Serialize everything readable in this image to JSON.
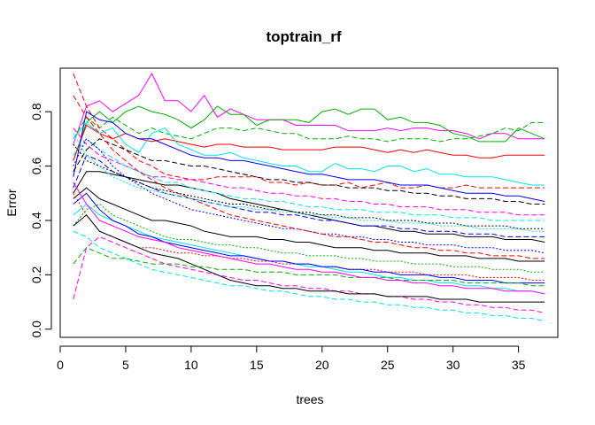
{
  "chart_data": {
    "type": "line",
    "title": "toptrain_rf",
    "xlabel": "trees",
    "ylabel": "Error",
    "xlim": [
      0,
      38
    ],
    "ylim": [
      -0.03,
      0.96
    ],
    "xticks": [
      0,
      5,
      10,
      15,
      20,
      25,
      30,
      35
    ],
    "yticks": [
      0.0,
      0.2,
      0.4,
      0.6,
      0.8
    ],
    "xtick_labels": [
      "0",
      "5",
      "10",
      "15",
      "20",
      "25",
      "30",
      "35"
    ],
    "ytick_labels": [
      "0.0",
      "0.2",
      "0.4",
      "0.6",
      "0.8"
    ],
    "grid": false,
    "legend": "none",
    "x": [
      1,
      2,
      3,
      4,
      5,
      6,
      7,
      8,
      9,
      10,
      11,
      12,
      13,
      14,
      15,
      16,
      17,
      18,
      19,
      20,
      21,
      22,
      23,
      24,
      25,
      26,
      27,
      28,
      29,
      30,
      31,
      32,
      33,
      34,
      35,
      36,
      37
    ],
    "series": [
      {
        "color": "#000000",
        "dash": "solid",
        "values": [
          0.5,
          0.58,
          0.58,
          0.57,
          0.56,
          0.55,
          0.54,
          0.53,
          0.53,
          0.52,
          0.51,
          0.5,
          0.48,
          0.47,
          0.46,
          0.45,
          0.44,
          0.43,
          0.42,
          0.41,
          0.4,
          0.39,
          0.38,
          0.38,
          0.37,
          0.36,
          0.36,
          0.35,
          0.35,
          0.35,
          0.34,
          0.34,
          0.34,
          0.33,
          0.33,
          0.33,
          0.32
        ]
      },
      {
        "color": "#ff00ff",
        "dash": "solid",
        "values": [
          0.68,
          0.82,
          0.84,
          0.8,
          0.83,
          0.86,
          0.94,
          0.84,
          0.84,
          0.8,
          0.86,
          0.78,
          0.81,
          0.79,
          0.77,
          0.77,
          0.77,
          0.75,
          0.75,
          0.75,
          0.75,
          0.73,
          0.73,
          0.73,
          0.74,
          0.73,
          0.74,
          0.74,
          0.73,
          0.73,
          0.72,
          0.7,
          0.72,
          0.72,
          0.7,
          0.7,
          0.7
        ]
      },
      {
        "color": "#00b000",
        "dash": "solid",
        "values": [
          0.62,
          0.76,
          0.8,
          0.76,
          0.8,
          0.82,
          0.8,
          0.79,
          0.77,
          0.74,
          0.77,
          0.82,
          0.79,
          0.79,
          0.75,
          0.77,
          0.77,
          0.77,
          0.76,
          0.8,
          0.81,
          0.79,
          0.81,
          0.81,
          0.77,
          0.78,
          0.76,
          0.76,
          0.75,
          0.72,
          0.71,
          0.69,
          0.69,
          0.69,
          0.74,
          0.72,
          0.7
        ]
      },
      {
        "color": "#00b000",
        "dash": "dashed",
        "values": [
          0.7,
          0.78,
          0.74,
          0.78,
          0.75,
          0.72,
          0.74,
          0.72,
          0.71,
          0.7,
          0.72,
          0.74,
          0.74,
          0.73,
          0.74,
          0.73,
          0.72,
          0.72,
          0.7,
          0.7,
          0.7,
          0.71,
          0.7,
          0.7,
          0.69,
          0.7,
          0.7,
          0.7,
          0.69,
          0.7,
          0.7,
          0.71,
          0.72,
          0.74,
          0.73,
          0.76,
          0.76
        ]
      },
      {
        "color": "#ff0000",
        "dash": "solid",
        "values": [
          0.62,
          0.75,
          0.72,
          0.7,
          0.72,
          0.7,
          0.69,
          0.7,
          0.69,
          0.68,
          0.67,
          0.68,
          0.68,
          0.67,
          0.67,
          0.67,
          0.66,
          0.66,
          0.66,
          0.66,
          0.67,
          0.67,
          0.67,
          0.66,
          0.65,
          0.66,
          0.65,
          0.66,
          0.65,
          0.64,
          0.64,
          0.63,
          0.63,
          0.64,
          0.64,
          0.64,
          0.64
        ]
      },
      {
        "color": "#ff0000",
        "dash": "dashed",
        "values": [
          0.94,
          0.82,
          0.74,
          0.7,
          0.66,
          0.62,
          0.6,
          0.57,
          0.56,
          0.55,
          0.55,
          0.56,
          0.56,
          0.56,
          0.56,
          0.54,
          0.54,
          0.53,
          0.54,
          0.53,
          0.53,
          0.54,
          0.52,
          0.53,
          0.54,
          0.52,
          0.52,
          0.53,
          0.52,
          0.52,
          0.53,
          0.52,
          0.52,
          0.52,
          0.52,
          0.52,
          0.52
        ]
      },
      {
        "color": "#00e5ee",
        "dash": "solid",
        "values": [
          0.7,
          0.76,
          0.72,
          0.74,
          0.68,
          0.65,
          0.72,
          0.74,
          0.68,
          0.66,
          0.64,
          0.64,
          0.65,
          0.63,
          0.62,
          0.61,
          0.6,
          0.6,
          0.58,
          0.58,
          0.61,
          0.59,
          0.59,
          0.58,
          0.6,
          0.6,
          0.58,
          0.59,
          0.57,
          0.57,
          0.56,
          0.56,
          0.56,
          0.55,
          0.54,
          0.53,
          0.53
        ]
      },
      {
        "color": "#0000ff",
        "dash": "solid",
        "values": [
          0.56,
          0.8,
          0.77,
          0.76,
          0.72,
          0.7,
          0.7,
          0.68,
          0.66,
          0.64,
          0.63,
          0.63,
          0.62,
          0.62,
          0.61,
          0.6,
          0.59,
          0.58,
          0.57,
          0.57,
          0.56,
          0.55,
          0.55,
          0.55,
          0.54,
          0.53,
          0.53,
          0.53,
          0.52,
          0.51,
          0.5,
          0.5,
          0.5,
          0.49,
          0.49,
          0.48,
          0.47
        ]
      },
      {
        "color": "#000000",
        "dash": "dashed",
        "values": [
          0.58,
          0.66,
          0.7,
          0.68,
          0.66,
          0.64,
          0.62,
          0.62,
          0.61,
          0.6,
          0.6,
          0.59,
          0.58,
          0.57,
          0.56,
          0.55,
          0.55,
          0.54,
          0.54,
          0.53,
          0.53,
          0.52,
          0.52,
          0.52,
          0.51,
          0.51,
          0.5,
          0.5,
          0.49,
          0.49,
          0.48,
          0.48,
          0.48,
          0.47,
          0.47,
          0.46,
          0.46
        ]
      },
      {
        "color": "#ff00ff",
        "dash": "dashed",
        "values": [
          0.74,
          0.68,
          0.64,
          0.62,
          0.6,
          0.58,
          0.56,
          0.56,
          0.55,
          0.55,
          0.54,
          0.53,
          0.52,
          0.52,
          0.51,
          0.5,
          0.5,
          0.49,
          0.49,
          0.48,
          0.48,
          0.47,
          0.47,
          0.46,
          0.46,
          0.45,
          0.45,
          0.45,
          0.44,
          0.44,
          0.44,
          0.43,
          0.43,
          0.43,
          0.42,
          0.42,
          0.42
        ]
      },
      {
        "color": "#00e5ee",
        "dash": "dashed",
        "values": [
          0.64,
          0.7,
          0.66,
          0.63,
          0.6,
          0.58,
          0.56,
          0.54,
          0.54,
          0.52,
          0.51,
          0.5,
          0.49,
          0.48,
          0.48,
          0.47,
          0.47,
          0.46,
          0.45,
          0.45,
          0.44,
          0.44,
          0.44,
          0.43,
          0.43,
          0.43,
          0.42,
          0.42,
          0.42,
          0.41,
          0.41,
          0.41,
          0.4,
          0.4,
          0.4,
          0.4,
          0.4
        ]
      },
      {
        "color": "#0000ff",
        "dash": "dashed",
        "values": [
          0.52,
          0.64,
          0.62,
          0.58,
          0.56,
          0.54,
          0.52,
          0.5,
          0.49,
          0.48,
          0.47,
          0.46,
          0.45,
          0.44,
          0.43,
          0.43,
          0.42,
          0.42,
          0.41,
          0.4,
          0.4,
          0.39,
          0.38,
          0.38,
          0.38,
          0.37,
          0.37,
          0.36,
          0.36,
          0.36,
          0.35,
          0.35,
          0.35,
          0.34,
          0.34,
          0.34,
          0.34
        ]
      },
      {
        "color": "#000000",
        "dash": "solid",
        "values": [
          0.48,
          0.52,
          0.48,
          0.46,
          0.44,
          0.42,
          0.4,
          0.4,
          0.39,
          0.38,
          0.36,
          0.35,
          0.34,
          0.34,
          0.34,
          0.33,
          0.33,
          0.32,
          0.32,
          0.31,
          0.3,
          0.3,
          0.3,
          0.29,
          0.29,
          0.28,
          0.28,
          0.28,
          0.27,
          0.27,
          0.27,
          0.26,
          0.26,
          0.26,
          0.25,
          0.25,
          0.25
        ]
      },
      {
        "color": "#00b000",
        "dash": "dotted",
        "values": [
          0.38,
          0.44,
          0.46,
          0.42,
          0.4,
          0.38,
          0.36,
          0.34,
          0.33,
          0.33,
          0.32,
          0.31,
          0.31,
          0.3,
          0.3,
          0.29,
          0.28,
          0.28,
          0.27,
          0.27,
          0.27,
          0.26,
          0.26,
          0.25,
          0.25,
          0.25,
          0.24,
          0.24,
          0.24,
          0.23,
          0.23,
          0.23,
          0.22,
          0.22,
          0.22,
          0.21,
          0.21
        ]
      },
      {
        "color": "#ff0000",
        "dash": "dotted",
        "values": [
          0.5,
          0.42,
          0.36,
          0.34,
          0.32,
          0.3,
          0.3,
          0.29,
          0.28,
          0.28,
          0.27,
          0.27,
          0.26,
          0.26,
          0.25,
          0.25,
          0.24,
          0.24,
          0.24,
          0.23,
          0.23,
          0.22,
          0.22,
          0.22,
          0.21,
          0.21,
          0.21,
          0.2,
          0.2,
          0.2,
          0.2,
          0.19,
          0.19,
          0.19,
          0.19,
          0.18,
          0.18
        ]
      },
      {
        "color": "#00e5ee",
        "dash": "solid",
        "values": [
          0.42,
          0.46,
          0.42,
          0.4,
          0.38,
          0.36,
          0.34,
          0.33,
          0.32,
          0.31,
          0.3,
          0.29,
          0.28,
          0.27,
          0.26,
          0.25,
          0.25,
          0.24,
          0.23,
          0.23,
          0.22,
          0.21,
          0.21,
          0.2,
          0.19,
          0.19,
          0.18,
          0.18,
          0.17,
          0.17,
          0.16,
          0.16,
          0.15,
          0.15,
          0.14,
          0.14,
          0.13
        ]
      },
      {
        "color": "#0000ff",
        "dash": "solid",
        "values": [
          0.46,
          0.5,
          0.44,
          0.4,
          0.38,
          0.35,
          0.34,
          0.32,
          0.31,
          0.3,
          0.29,
          0.28,
          0.27,
          0.27,
          0.26,
          0.25,
          0.25,
          0.24,
          0.24,
          0.23,
          0.23,
          0.22,
          0.22,
          0.21,
          0.21,
          0.2,
          0.2,
          0.2,
          0.19,
          0.19,
          0.18,
          0.18,
          0.18,
          0.17,
          0.17,
          0.17,
          0.17
        ]
      },
      {
        "color": "#ff00ff",
        "dash": "dashed",
        "values": [
          0.11,
          0.3,
          0.34,
          0.32,
          0.3,
          0.28,
          0.26,
          0.24,
          0.23,
          0.22,
          0.21,
          0.2,
          0.19,
          0.18,
          0.18,
          0.17,
          0.16,
          0.16,
          0.15,
          0.15,
          0.14,
          0.14,
          0.13,
          0.13,
          0.12,
          0.12,
          0.11,
          0.11,
          0.1,
          0.1,
          0.09,
          0.09,
          0.08,
          0.08,
          0.07,
          0.07,
          0.06
        ]
      },
      {
        "color": "#00e5ee",
        "dash": "dashed",
        "values": [
          0.36,
          0.34,
          0.3,
          0.28,
          0.26,
          0.24,
          0.22,
          0.21,
          0.2,
          0.19,
          0.18,
          0.17,
          0.16,
          0.16,
          0.15,
          0.14,
          0.14,
          0.13,
          0.12,
          0.12,
          0.11,
          0.11,
          0.1,
          0.1,
          0.09,
          0.09,
          0.08,
          0.08,
          0.07,
          0.07,
          0.06,
          0.06,
          0.05,
          0.05,
          0.04,
          0.04,
          0.03
        ]
      },
      {
        "color": "#000000",
        "dash": "solid",
        "values": [
          0.38,
          0.42,
          0.36,
          0.34,
          0.32,
          0.3,
          0.28,
          0.27,
          0.26,
          0.24,
          0.22,
          0.2,
          0.18,
          0.17,
          0.16,
          0.16,
          0.15,
          0.15,
          0.14,
          0.14,
          0.14,
          0.13,
          0.13,
          0.13,
          0.12,
          0.12,
          0.12,
          0.12,
          0.11,
          0.11,
          0.11,
          0.1,
          0.1,
          0.1,
          0.1,
          0.1,
          0.1
        ]
      },
      {
        "color": "#00b000",
        "dash": "dashed",
        "values": [
          0.24,
          0.3,
          0.28,
          0.26,
          0.26,
          0.25,
          0.24,
          0.24,
          0.24,
          0.23,
          0.23,
          0.22,
          0.22,
          0.22,
          0.21,
          0.21,
          0.21,
          0.2,
          0.2,
          0.2,
          0.2,
          0.19,
          0.19,
          0.19,
          0.19,
          0.18,
          0.18,
          0.18,
          0.18,
          0.18,
          0.17,
          0.17,
          0.17,
          0.17,
          0.17,
          0.16,
          0.16
        ]
      },
      {
        "color": "#ff00ff",
        "dash": "solid",
        "values": [
          0.54,
          0.46,
          0.4,
          0.38,
          0.36,
          0.34,
          0.33,
          0.32,
          0.3,
          0.29,
          0.28,
          0.27,
          0.26,
          0.25,
          0.24,
          0.24,
          0.23,
          0.22,
          0.22,
          0.21,
          0.21,
          0.2,
          0.19,
          0.19,
          0.18,
          0.18,
          0.17,
          0.17,
          0.16,
          0.16,
          0.15,
          0.15,
          0.15,
          0.14,
          0.14,
          0.14,
          0.13
        ]
      },
      {
        "color": "#0000ff",
        "dash": "dotted",
        "values": [
          0.6,
          0.7,
          0.66,
          0.6,
          0.56,
          0.53,
          0.5,
          0.48,
          0.46,
          0.44,
          0.43,
          0.42,
          0.41,
          0.4,
          0.39,
          0.38,
          0.37,
          0.37,
          0.36,
          0.35,
          0.35,
          0.34,
          0.34,
          0.33,
          0.33,
          0.32,
          0.32,
          0.31,
          0.31,
          0.31,
          0.3,
          0.3,
          0.3,
          0.29,
          0.29,
          0.29,
          0.28
        ]
      },
      {
        "color": "#ff0000",
        "dash": "dashed",
        "values": [
          0.86,
          0.78,
          0.72,
          0.66,
          0.62,
          0.58,
          0.55,
          0.52,
          0.5,
          0.48,
          0.46,
          0.44,
          0.42,
          0.41,
          0.4,
          0.39,
          0.38,
          0.37,
          0.36,
          0.35,
          0.34,
          0.34,
          0.33,
          0.32,
          0.32,
          0.31,
          0.3,
          0.3,
          0.29,
          0.29,
          0.28,
          0.28,
          0.27,
          0.27,
          0.27,
          0.26,
          0.26
        ]
      },
      {
        "color": "#000000",
        "dash": "dotted",
        "values": [
          0.68,
          0.62,
          0.6,
          0.58,
          0.56,
          0.54,
          0.52,
          0.51,
          0.5,
          0.49,
          0.48,
          0.47,
          0.46,
          0.46,
          0.45,
          0.44,
          0.44,
          0.43,
          0.43,
          0.42,
          0.42,
          0.41,
          0.41,
          0.41,
          0.4,
          0.4,
          0.4,
          0.39,
          0.39,
          0.39,
          0.38,
          0.38,
          0.38,
          0.38,
          0.37,
          0.37,
          0.37
        ]
      },
      {
        "color": "#00e5ee",
        "dash": "dotted",
        "values": [
          0.72,
          0.64,
          0.6,
          0.56,
          0.54,
          0.52,
          0.51,
          0.5,
          0.49,
          0.48,
          0.47,
          0.46,
          0.45,
          0.45,
          0.44,
          0.44,
          0.43,
          0.43,
          0.42,
          0.42,
          0.41,
          0.41,
          0.4,
          0.4,
          0.4,
          0.39,
          0.39,
          0.39,
          0.38,
          0.38,
          0.38,
          0.37,
          0.37,
          0.37,
          0.37,
          0.36,
          0.36
        ]
      }
    ]
  }
}
